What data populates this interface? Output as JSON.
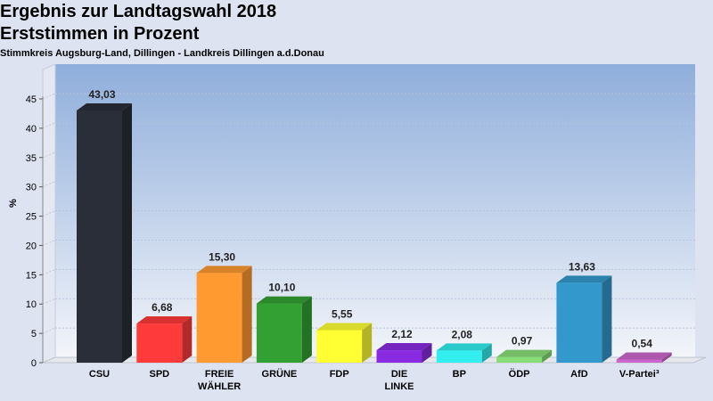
{
  "chart_data": {
    "type": "bar",
    "title": "Ergebnis zur Landtagswahl 2018",
    "subtitle_line": "Erststimmen in Prozent",
    "subtitle": "Stimmkreis Augsburg-Land, Dillingen - Landkreis Dillingen a.d.Donau",
    "ylabel": "%",
    "xlabel": "",
    "ylim": [
      0,
      45
    ],
    "yticks": [
      0,
      5,
      10,
      15,
      20,
      25,
      30,
      35,
      40,
      45
    ],
    "grid": true,
    "categories": [
      "CSU",
      "SPD",
      "FREIE WÄHLER",
      "GRÜNE",
      "FDP",
      "DIE LINKE",
      "BP",
      "ÖDP",
      "AfD",
      "V-Partei³"
    ],
    "category_lines": [
      [
        "CSU"
      ],
      [
        "SPD"
      ],
      [
        "FREIE",
        "WÄHLER"
      ],
      [
        "GRÜNE"
      ],
      [
        "FDP"
      ],
      [
        "DIE",
        "LINKE"
      ],
      [
        "BP"
      ],
      [
        "ÖDP"
      ],
      [
        "AfD"
      ],
      [
        "V-Partei³"
      ]
    ],
    "values": [
      43.03,
      6.68,
      15.3,
      10.1,
      5.55,
      2.12,
      2.08,
      0.97,
      13.63,
      0.54
    ],
    "value_labels": [
      "43,03",
      "6,68",
      "15,30",
      "10,10",
      "5,55",
      "2,12",
      "2,08",
      "0,97",
      "13,63",
      "0,54"
    ],
    "colors": [
      "#2a2e38",
      "#ff3a3a",
      "#ff9a30",
      "#33a033",
      "#ffff33",
      "#8a2be2",
      "#33eeee",
      "#88dd77",
      "#3399cc",
      "#cc66cc"
    ]
  }
}
